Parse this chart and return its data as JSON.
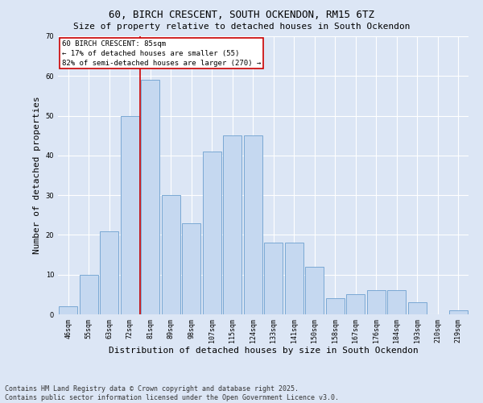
{
  "title": "60, BIRCH CRESCENT, SOUTH OCKENDON, RM15 6TZ",
  "subtitle": "Size of property relative to detached houses in South Ockendon",
  "xlabel": "Distribution of detached houses by size in South Ockendon",
  "ylabel": "Number of detached properties",
  "categories": [
    "46sqm",
    "55sqm",
    "63sqm",
    "72sqm",
    "81sqm",
    "89sqm",
    "98sqm",
    "107sqm",
    "115sqm",
    "124sqm",
    "133sqm",
    "141sqm",
    "150sqm",
    "158sqm",
    "167sqm",
    "176sqm",
    "184sqm",
    "193sqm",
    "210sqm",
    "219sqm"
  ],
  "values": [
    2,
    10,
    21,
    50,
    59,
    30,
    23,
    41,
    45,
    45,
    18,
    18,
    12,
    4,
    5,
    6,
    6,
    3,
    0,
    1
  ],
  "bar_color": "#c5d8f0",
  "bar_edge_color": "#7aa8d4",
  "red_line_x": 3.5,
  "ylim": [
    0,
    70
  ],
  "yticks": [
    0,
    10,
    20,
    30,
    40,
    50,
    60,
    70
  ],
  "annotation_title": "60 BIRCH CRESCENT: 85sqm",
  "annotation_line1": "← 17% of detached houses are smaller (55)",
  "annotation_line2": "82% of semi-detached houses are larger (270) →",
  "annotation_box_facecolor": "#ffffff",
  "annotation_box_edgecolor": "#cc0000",
  "footer1": "Contains HM Land Registry data © Crown copyright and database right 2025.",
  "footer2": "Contains public sector information licensed under the Open Government Licence v3.0.",
  "bg_color": "#dce6f5",
  "grid_color": "#ffffff",
  "title_fontsize": 9,
  "subtitle_fontsize": 8,
  "tick_fontsize": 6,
  "label_fontsize": 8,
  "footer_fontsize": 6,
  "annotation_fontsize": 6.5
}
